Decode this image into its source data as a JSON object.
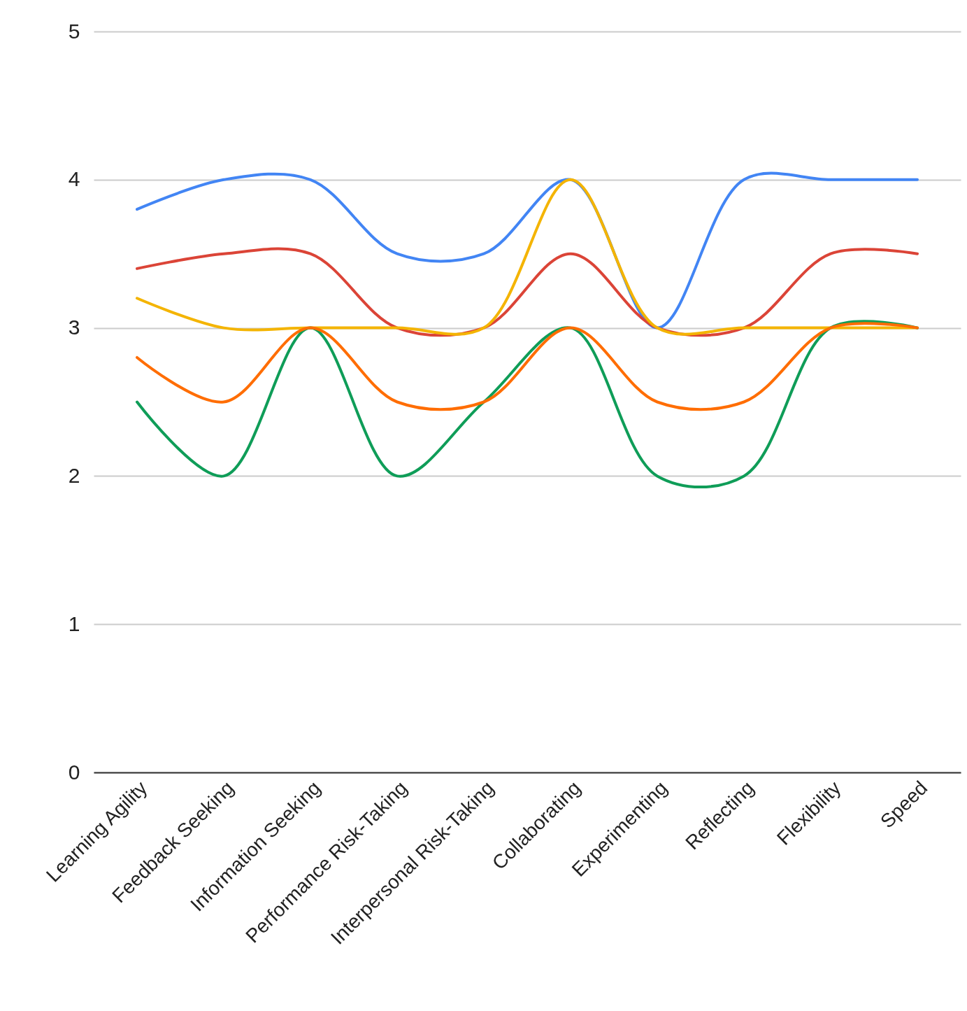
{
  "chart_data": {
    "type": "line",
    "categories": [
      "Learning Agility",
      "Feedback Seeking",
      "Information Seeking",
      "Performance Risk-Taking",
      "Interpersonal Risk-Taking",
      "Collaborating",
      "Experimenting",
      "Reflecting",
      "Flexibility",
      "Speed"
    ],
    "series": [
      {
        "color": "#4285f4",
        "values": [
          3.8,
          4.0,
          4.0,
          3.5,
          3.5,
          4.0,
          3.0,
          4.0,
          4.0,
          4.0
        ]
      },
      {
        "color": "#db4437",
        "values": [
          3.4,
          3.5,
          3.5,
          3.0,
          3.0,
          3.5,
          3.0,
          3.0,
          3.5,
          3.5
        ]
      },
      {
        "color": "#f4b400",
        "values": [
          3.2,
          3.0,
          3.0,
          3.0,
          3.0,
          4.0,
          3.0,
          3.0,
          3.0,
          3.0
        ]
      },
      {
        "color": "#0f9d58",
        "values": [
          2.5,
          2.0,
          3.0,
          2.0,
          2.5,
          3.0,
          2.0,
          2.0,
          3.0,
          3.0
        ]
      },
      {
        "color": "#ff6d01",
        "values": [
          2.8,
          2.5,
          3.0,
          2.5,
          2.5,
          3.0,
          2.5,
          2.5,
          3.0,
          3.0
        ]
      }
    ],
    "ylim": [
      0,
      5
    ],
    "yticks": [
      0,
      1,
      2,
      3,
      4,
      5
    ],
    "grid": "y"
  }
}
